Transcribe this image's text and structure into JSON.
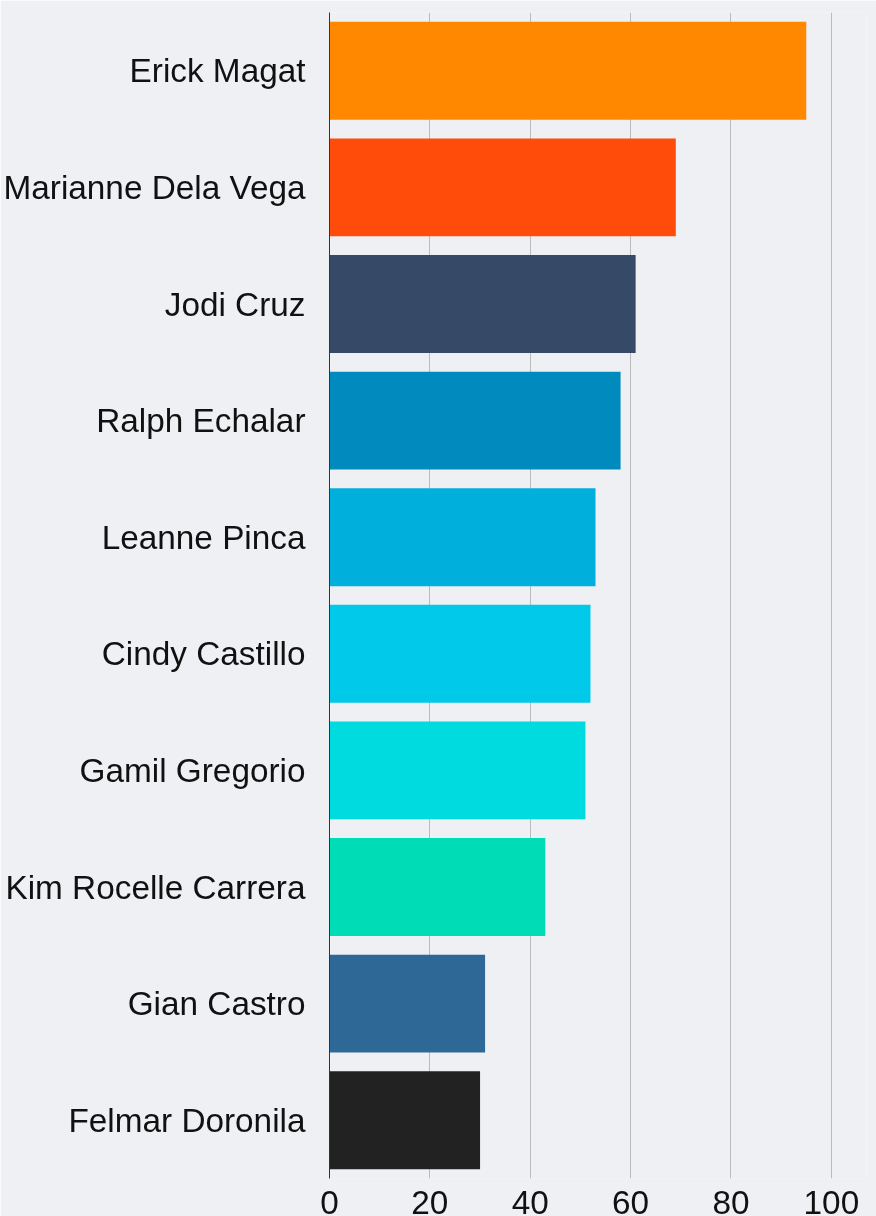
{
  "chart_data": {
    "type": "bar",
    "orientation": "horizontal",
    "categories": [
      "Erick Magat",
      "Marianne Dela Vega",
      "Jodi Cruz",
      "Ralph Echalar",
      "Leanne Pinca",
      "Cindy Castillo",
      "Gamil Gregorio",
      "Kim Rocelle Carrera",
      "Gian Castro",
      "Felmar Doronila"
    ],
    "values": [
      95,
      69,
      61,
      58,
      53,
      52,
      51,
      43,
      31,
      30
    ],
    "colors": [
      "#ff8800",
      "#ff4c0a",
      "#364a68",
      "#008abd",
      "#00afdc",
      "#00c9ea",
      "#00dbe0",
      "#00dcb5",
      "#2e6896",
      "#222222"
    ],
    "xlim": [
      0,
      107
    ],
    "xticks": [
      0,
      20,
      40,
      60,
      80,
      100
    ],
    "grid": "x"
  }
}
